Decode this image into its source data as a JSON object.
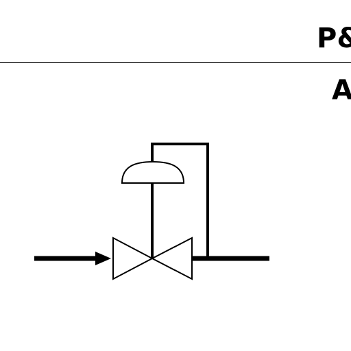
{
  "header": {
    "title": "P&",
    "subtitle": "A"
  },
  "diagram": {
    "symbol": "self-operated-control-valve-icon",
    "line_color": "#000000",
    "fill_color": "#ffffff"
  }
}
